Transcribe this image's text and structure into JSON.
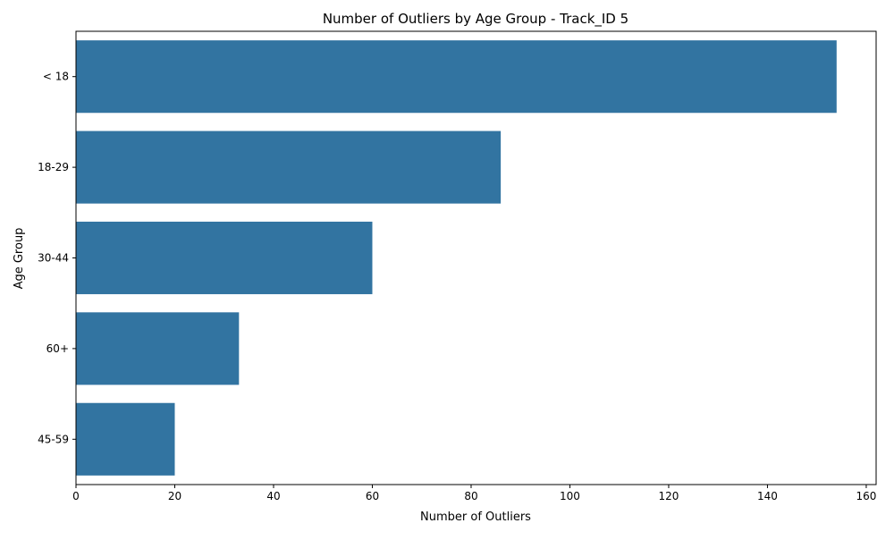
{
  "chart_data": {
    "type": "bar",
    "orientation": "horizontal",
    "title": "Number of Outliers by Age Group - Track_ID 5",
    "xlabel": "Number of Outliers",
    "ylabel": "Age Group",
    "categories": [
      "< 18",
      "18-29",
      "30-44",
      "60+",
      "45-59"
    ],
    "values": [
      154,
      86,
      60,
      33,
      20
    ],
    "xlim": [
      0,
      162
    ],
    "xticks": [
      0,
      20,
      40,
      60,
      80,
      100,
      120,
      140,
      160
    ],
    "grid": false,
    "bar_color": "#3274a1"
  }
}
